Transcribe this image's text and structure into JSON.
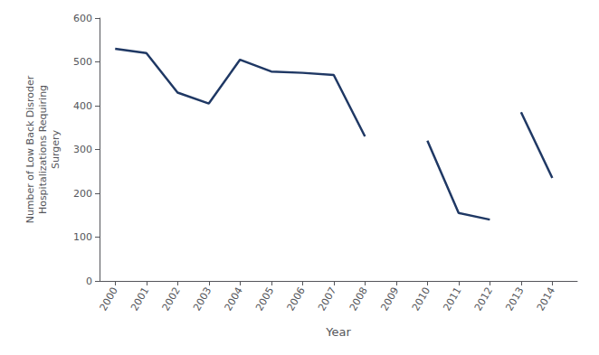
{
  "chart_data": {
    "type": "line",
    "xlabel": "Year",
    "ylabel": "Number of Low Back Disroder\nHospitalizations Requiring\nSurgery",
    "color": "#1F3864",
    "series": [
      {
        "x": [
          2000,
          2001,
          2002,
          2003,
          2004,
          2005,
          2006,
          2007,
          2008
        ],
        "values": [
          530,
          520,
          430,
          405,
          505,
          478,
          475,
          470,
          330
        ]
      },
      {
        "x": [
          2010,
          2011,
          2012
        ],
        "values": [
          320,
          155,
          140
        ]
      },
      {
        "x": [
          2013,
          2014
        ],
        "values": [
          385,
          235
        ]
      }
    ],
    "xlim": [
      1999.5,
      2014.8
    ],
    "xticks": [
      2000,
      2001,
      2002,
      2003,
      2004,
      2005,
      2006,
      2007,
      2008,
      2009,
      2010,
      2011,
      2012,
      2013,
      2014
    ],
    "ylim": [
      0,
      600
    ],
    "yticks": [
      0,
      100,
      200,
      300,
      400,
      500,
      600
    ],
    "grid": false
  }
}
